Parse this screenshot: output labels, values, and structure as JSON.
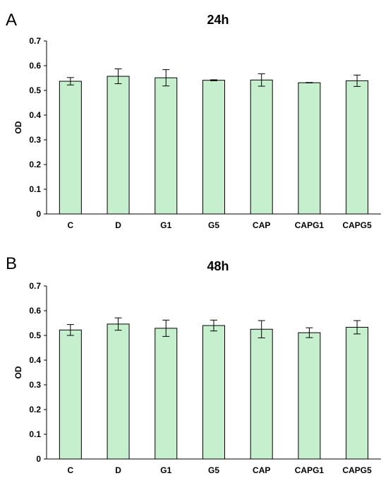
{
  "chart_data": [
    {
      "type": "bar",
      "panel_label": "A",
      "title": "24h",
      "xlabel": "",
      "ylabel": "OD",
      "ylim": [
        0,
        0.7
      ],
      "yticks": [
        "0",
        "0.1",
        "0.2",
        "0.3",
        "0.4",
        "0.5",
        "0.6",
        "0.7"
      ],
      "categories": [
        "C",
        "D",
        "G1",
        "G5",
        "CAP",
        "CAPG1",
        "CAPG5"
      ],
      "values": [
        0.537,
        0.557,
        0.551,
        0.541,
        0.542,
        0.531,
        0.539
      ],
      "errors": [
        0.015,
        0.03,
        0.033,
        0.002,
        0.025,
        0.001,
        0.023
      ],
      "bar_color": "#c6efce",
      "grid": false,
      "legend": "none"
    },
    {
      "type": "bar",
      "panel_label": "B",
      "title": "48h",
      "xlabel": "",
      "ylabel": "OD",
      "ylim": [
        0,
        0.7
      ],
      "yticks": [
        "0",
        "0.1",
        "0.2",
        "0.3",
        "0.4",
        "0.5",
        "0.6",
        "0.7"
      ],
      "categories": [
        "C",
        "D",
        "G1",
        "G5",
        "CAP",
        "CAPG1",
        "CAPG5"
      ],
      "values": [
        0.522,
        0.546,
        0.529,
        0.54,
        0.525,
        0.511,
        0.533
      ],
      "errors": [
        0.022,
        0.025,
        0.033,
        0.022,
        0.035,
        0.02,
        0.027
      ],
      "bar_color": "#c6efce",
      "grid": false,
      "legend": "none"
    }
  ]
}
